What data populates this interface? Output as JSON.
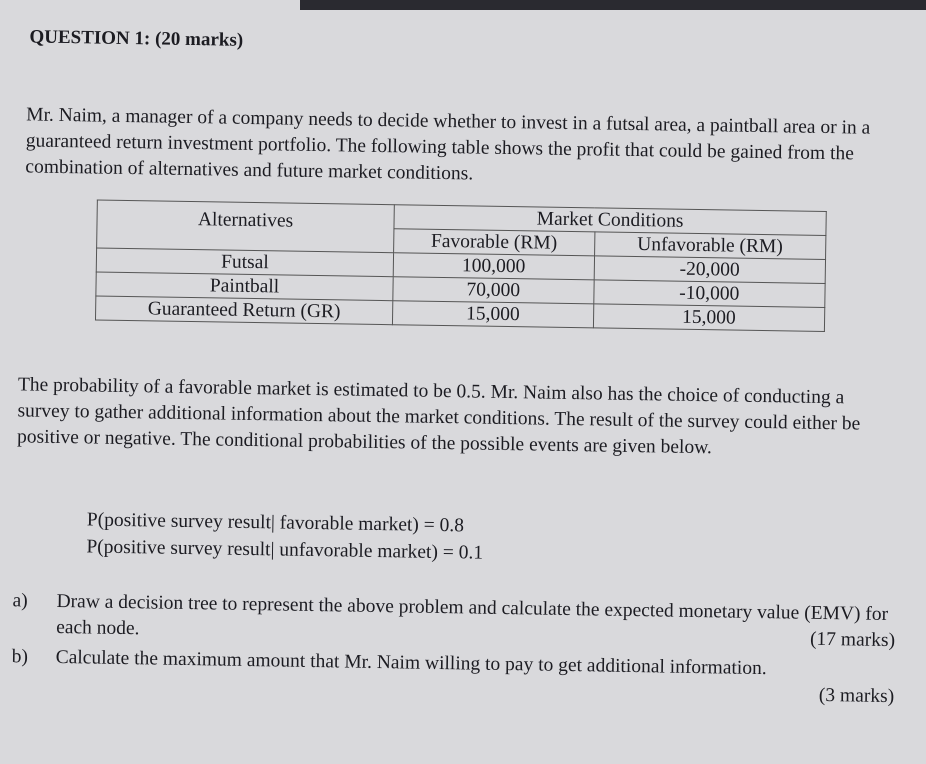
{
  "question_title": "QUESTION 1: (20 marks)",
  "intro": "Mr. Naim, a manager of a company needs to decide whether to invest in a futsal area, a paintball area or in a guaranteed return investment portfolio. The following table shows the profit that could be gained from the combination of alternatives and future market conditions.",
  "table": {
    "header_alternatives": "Alternatives",
    "header_market": "Market Conditions",
    "header_favorable": "Favorable (RM)",
    "header_unfavorable": "Unfavorable (RM)",
    "rows": [
      {
        "alternative": "Futsal",
        "favorable": "100,000",
        "unfavorable": "-20,000"
      },
      {
        "alternative": "Paintball",
        "favorable": "70,000",
        "unfavorable": "-10,000"
      },
      {
        "alternative": "Guaranteed Return (GR)",
        "favorable": "15,000",
        "unfavorable": "15,000"
      }
    ]
  },
  "paragraph2": "The probability of a favorable market is estimated to be 0.5. Mr. Naim also has the choice of conducting a survey to gather additional information about the market conditions. The result of the survey could either be positive or negative. The conditional probabilities of the possible events are given below.",
  "probabilities": [
    "P(positive survey result| favorable market) = 0.8",
    "P(positive survey result| unfavorable market) = 0.1"
  ],
  "questions": [
    {
      "label": "a)",
      "text": "Draw a decision tree to represent the above problem and calculate the expected monetary value (EMV) for each node.",
      "marks": "(17 marks)"
    },
    {
      "label": "b)",
      "text": "Calculate the maximum amount that Mr. Naim willing to pay to get additional information.",
      "marks": "(3 marks)"
    }
  ]
}
